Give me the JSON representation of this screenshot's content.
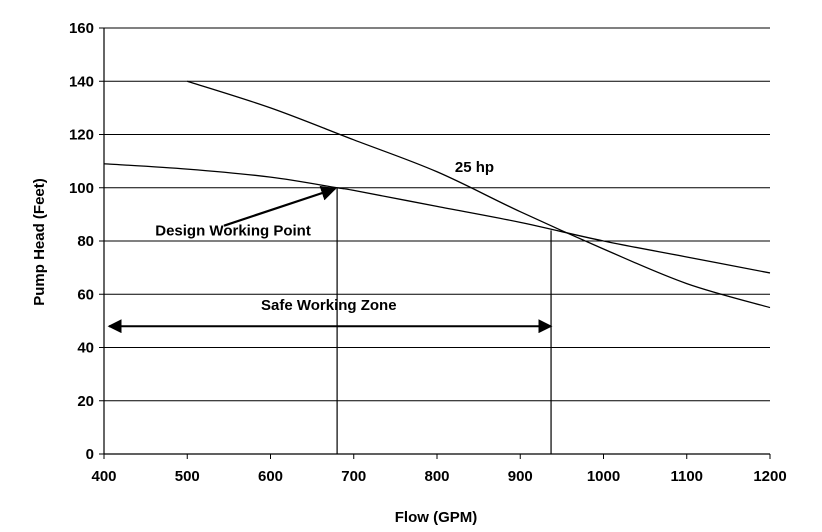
{
  "chart_data": {
    "type": "line",
    "title": "",
    "xlabel": "Flow (GPM)",
    "ylabel": "Pump Head (Feet)",
    "xlim": [
      400,
      1200
    ],
    "ylim": [
      0,
      160
    ],
    "x_ticks": [
      400,
      500,
      600,
      700,
      800,
      900,
      1000,
      1100,
      1200
    ],
    "y_ticks": [
      0,
      20,
      40,
      60,
      80,
      100,
      120,
      140,
      160
    ],
    "grid": "horizontal",
    "series": [
      {
        "name": "25 hp",
        "x": [
          500,
          600,
          700,
          800,
          900,
          1000,
          1100,
          1200
        ],
        "y": [
          140,
          130,
          118,
          106,
          91,
          77,
          64,
          55
        ]
      },
      {
        "x": [
          400,
          500,
          600,
          680,
          700,
          800,
          900,
          1000,
          1100,
          1200
        ],
        "y": [
          109,
          107,
          104,
          100,
          99,
          93,
          87,
          80,
          74,
          68
        ]
      }
    ],
    "annotations": [
      {
        "text": "25 hp",
        "x": 845,
        "y": 106
      },
      {
        "text": "Design Working Point",
        "x": 555,
        "y": 82,
        "arrow_to": [
          680,
          100
        ]
      },
      {
        "text": "Safe Working Zone",
        "x": 670,
        "y": 54,
        "span": [
          406,
          937
        ],
        "span_y": 48
      }
    ],
    "reference_lines": [
      {
        "x": 680,
        "y_top": 100
      },
      {
        "x": 937,
        "y_top": 84
      }
    ]
  }
}
